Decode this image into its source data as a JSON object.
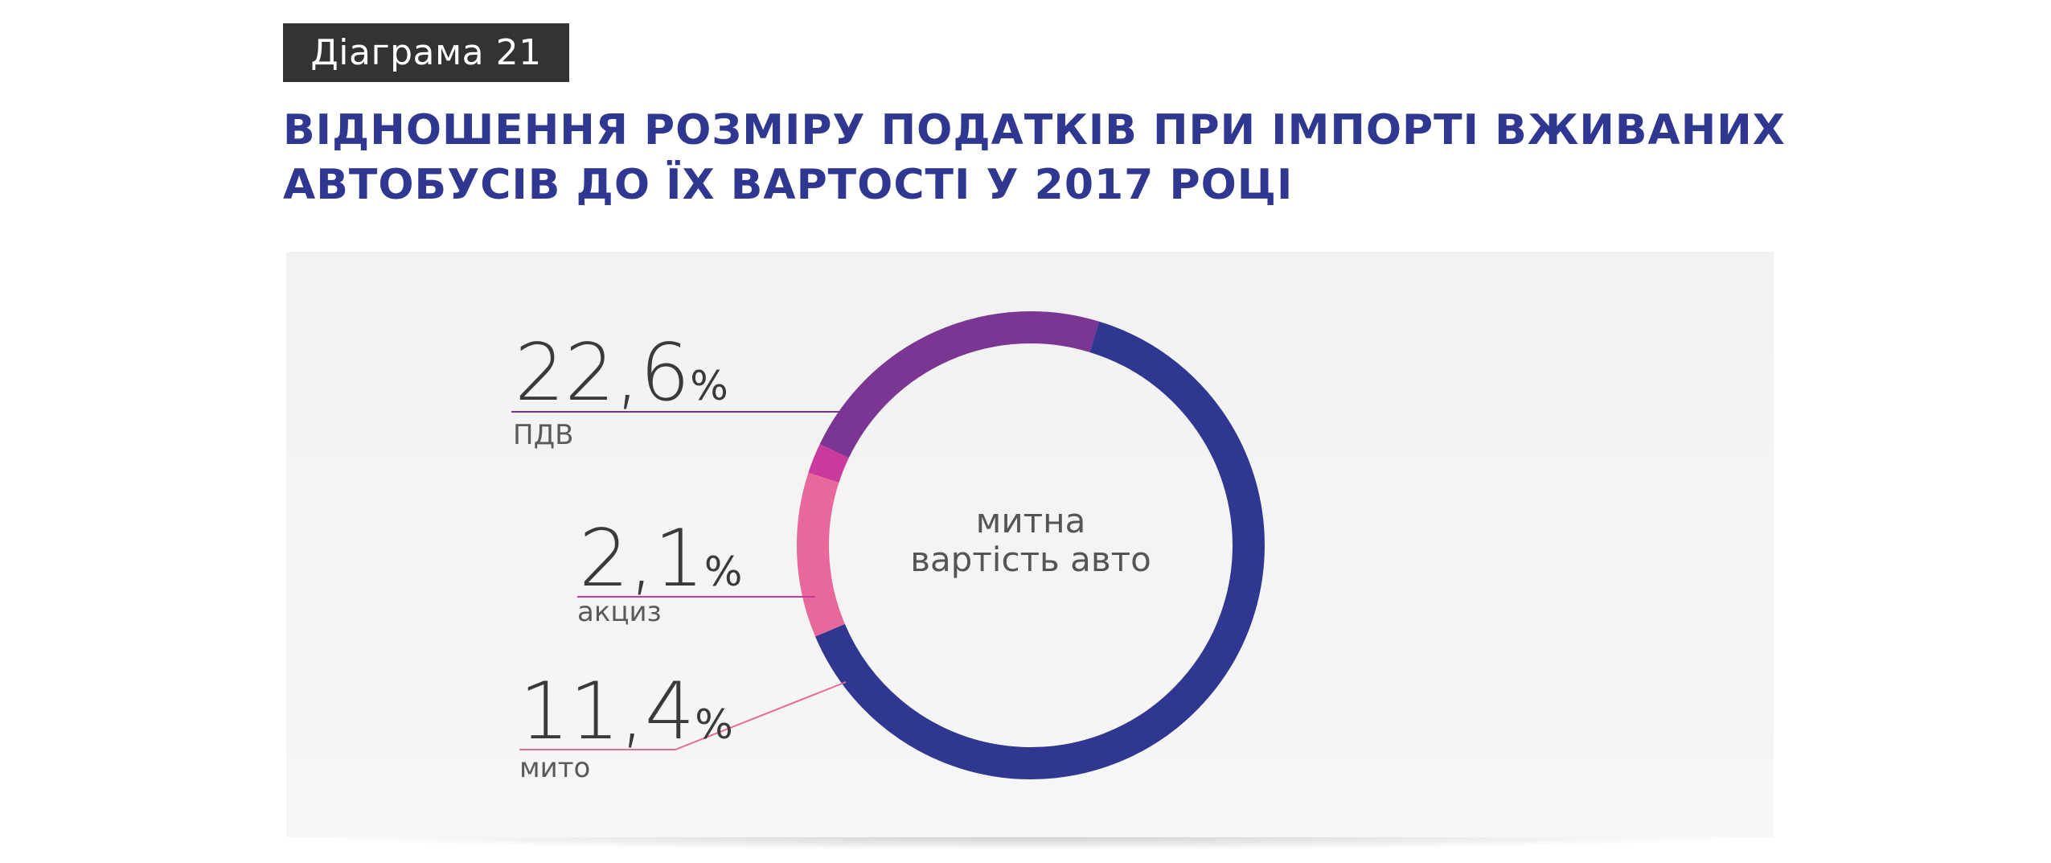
{
  "header": {
    "badge": "Діаграма 21",
    "title_line1": "ВІДНОШЕННЯ РОЗМІРУ ПОДАТКІВ ПРИ ІМПОРТІ ВЖИВАНИХ",
    "title_line2": "АВТОБУСІВ ДО ЇХ ВАРТОСТІ У 2017 РОЦІ"
  },
  "chart_data": {
    "type": "pie",
    "title": "ВІДНОШЕННЯ РОЗМІРУ ПОДАТКІВ ПРИ ІМПОРТІ ВЖИВАНИХ АВТОБУСІВ ДО ЇХ ВАРТОСТІ У 2017 РОЦІ",
    "center_label_line1": "митна",
    "center_label_line2": "вартість авто",
    "total": 100,
    "slices": [
      {
        "label": "ПДВ",
        "value": 22.6,
        "display_value": "22,6",
        "unit": "%",
        "color": "#7b3593"
      },
      {
        "label": "акциз",
        "value": 2.1,
        "display_value": "2,1",
        "unit": "%",
        "color": "#c93a9c"
      },
      {
        "label": "мито",
        "value": 11.4,
        "display_value": "11,4",
        "unit": "%",
        "color": "#e8689c"
      },
      {
        "label": "митна вартість авто",
        "value": 63.9,
        "color": "#2f3790"
      }
    ],
    "legend": "none"
  }
}
